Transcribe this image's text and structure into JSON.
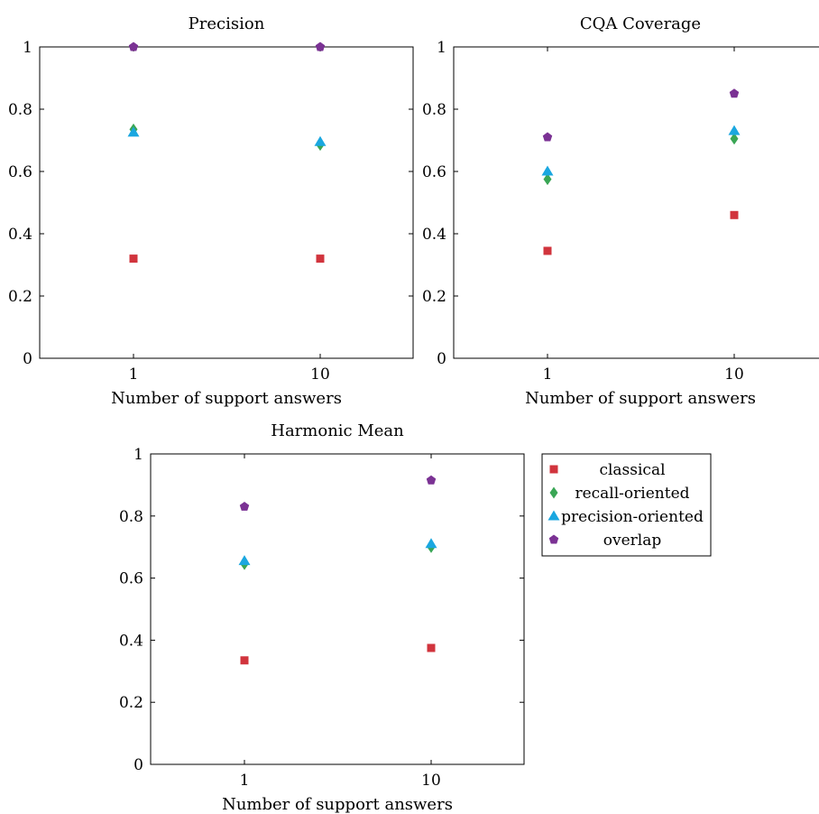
{
  "chart_data": [
    {
      "type": "scatter",
      "title": "Precision",
      "xlabel": "Number of support answers",
      "ylabel": "",
      "x_ticks": [
        "1",
        "10"
      ],
      "y_ticks": [
        "0",
        "0.2",
        "0.4",
        "0.6",
        "0.8",
        "1"
      ],
      "ylim": [
        0,
        1
      ],
      "grid": false,
      "series": [
        {
          "name": "classical",
          "color": "#d1343d",
          "marker": "square",
          "points": [
            {
              "x": "1",
              "y": 0.32
            },
            {
              "x": "10",
              "y": 0.32
            }
          ]
        },
        {
          "name": "recall-oriented",
          "color": "#3aa655",
          "marker": "diamond",
          "points": [
            {
              "x": "1",
              "y": 0.735
            },
            {
              "x": "10",
              "y": 0.685
            }
          ]
        },
        {
          "name": "precision-oriented",
          "color": "#1aa7e0",
          "marker": "triangle",
          "points": [
            {
              "x": "1",
              "y": 0.725
            },
            {
              "x": "10",
              "y": 0.695
            }
          ]
        },
        {
          "name": "overlap",
          "color": "#7b3294",
          "marker": "pentagon",
          "points": [
            {
              "x": "1",
              "y": 1.0
            },
            {
              "x": "10",
              "y": 1.0
            }
          ]
        }
      ]
    },
    {
      "type": "scatter",
      "title": "CQA Coverage",
      "xlabel": "Number of support answers",
      "ylabel": "",
      "x_ticks": [
        "1",
        "10"
      ],
      "y_ticks": [
        "0",
        "0.2",
        "0.4",
        "0.6",
        "0.8",
        "1"
      ],
      "ylim": [
        0,
        1
      ],
      "grid": false,
      "series": [
        {
          "name": "classical",
          "color": "#d1343d",
          "marker": "square",
          "points": [
            {
              "x": "1",
              "y": 0.345
            },
            {
              "x": "10",
              "y": 0.46
            }
          ]
        },
        {
          "name": "recall-oriented",
          "color": "#3aa655",
          "marker": "diamond",
          "points": [
            {
              "x": "1",
              "y": 0.575
            },
            {
              "x": "10",
              "y": 0.705
            }
          ]
        },
        {
          "name": "precision-oriented",
          "color": "#1aa7e0",
          "marker": "triangle",
          "points": [
            {
              "x": "1",
              "y": 0.6
            },
            {
              "x": "10",
              "y": 0.73
            }
          ]
        },
        {
          "name": "overlap",
          "color": "#7b3294",
          "marker": "pentagon",
          "points": [
            {
              "x": "1",
              "y": 0.71
            },
            {
              "x": "10",
              "y": 0.85
            }
          ]
        }
      ]
    },
    {
      "type": "scatter",
      "title": "Harmonic Mean",
      "xlabel": "Number of support answers",
      "ylabel": "",
      "x_ticks": [
        "1",
        "10"
      ],
      "y_ticks": [
        "0",
        "0.2",
        "0.4",
        "0.6",
        "0.8",
        "1"
      ],
      "ylim": [
        0,
        1
      ],
      "grid": false,
      "series": [
        {
          "name": "classical",
          "color": "#d1343d",
          "marker": "square",
          "points": [
            {
              "x": "1",
              "y": 0.335
            },
            {
              "x": "10",
              "y": 0.375
            }
          ]
        },
        {
          "name": "recall-oriented",
          "color": "#3aa655",
          "marker": "diamond",
          "points": [
            {
              "x": "1",
              "y": 0.645
            },
            {
              "x": "10",
              "y": 0.7
            }
          ]
        },
        {
          "name": "precision-oriented",
          "color": "#1aa7e0",
          "marker": "triangle",
          "points": [
            {
              "x": "1",
              "y": 0.655
            },
            {
              "x": "10",
              "y": 0.71
            }
          ]
        },
        {
          "name": "overlap",
          "color": "#7b3294",
          "marker": "pentagon",
          "points": [
            {
              "x": "1",
              "y": 0.83
            },
            {
              "x": "10",
              "y": 0.915
            }
          ]
        }
      ]
    }
  ],
  "legend": {
    "placement": "right of bottom chart",
    "entries": [
      {
        "label": "classical",
        "color": "#d1343d",
        "marker": "square"
      },
      {
        "label": "recall-oriented",
        "color": "#3aa655",
        "marker": "diamond"
      },
      {
        "label": "precision-oriented",
        "color": "#1aa7e0",
        "marker": "triangle"
      },
      {
        "label": "overlap",
        "color": "#7b3294",
        "marker": "pentagon"
      }
    ]
  }
}
